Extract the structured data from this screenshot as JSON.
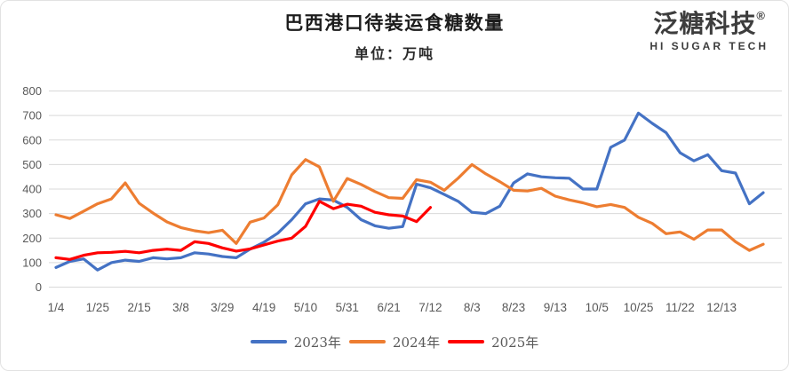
{
  "header": {
    "title": "巴西港口待装运食糖数量",
    "subtitle": "单位：万吨"
  },
  "logo": {
    "brand": "泛糖科技",
    "registered": "®",
    "tagline": "HI SUGAR TECH"
  },
  "colors": {
    "gridline": "#d9d9d9",
    "axis_text": "#595959",
    "series_2023": "#4472c4",
    "series_2024": "#ed7d31",
    "series_2025": "#ff0000"
  },
  "chart_data": {
    "type": "line",
    "title": "巴西港口待装运食糖数量",
    "unit_label": "单位：万吨",
    "grid": true,
    "legend_position": "bottom",
    "ylim": [
      0,
      800
    ],
    "y_ticks": [
      0,
      100,
      200,
      300,
      400,
      500,
      600,
      700,
      800
    ],
    "x_tick_labels": [
      "1/4",
      "1/25",
      "2/15",
      "3/8",
      "3/29",
      "4/19",
      "5/10",
      "5/31",
      "6/21",
      "7/12",
      "8/3",
      "8/23",
      "9/13",
      "10/5",
      "10/25",
      "11/22",
      "12/13"
    ],
    "ticks_every": 3,
    "n_points": 52,
    "x_note": "weekly data points; axis labeled every 3rd point",
    "series": [
      {
        "name": "2023年",
        "color": "#4472c4",
        "values": [
          80,
          105,
          115,
          70,
          100,
          110,
          105,
          120,
          115,
          120,
          140,
          135,
          125,
          120,
          155,
          183,
          220,
          275,
          340,
          360,
          355,
          325,
          275,
          250,
          240,
          247,
          420,
          405,
          378,
          350,
          305,
          300,
          330,
          425,
          462,
          450,
          446,
          444,
          400,
          400,
          570,
          600,
          710,
          668,
          630,
          548,
          515,
          540,
          475,
          465,
          340,
          385
        ]
      },
      {
        "name": "2024年",
        "color": "#ed7d31",
        "values": [
          295,
          280,
          310,
          340,
          360,
          425,
          342,
          302,
          266,
          243,
          230,
          222,
          232,
          178,
          265,
          282,
          336,
          458,
          520,
          490,
          350,
          443,
          419,
          390,
          365,
          362,
          438,
          428,
          395,
          444,
          500,
          462,
          430,
          395,
          392,
          403,
          371,
          356,
          344,
          328,
          337,
          325,
          285,
          260,
          218,
          225,
          195,
          233,
          233,
          185,
          150,
          175
        ]
      },
      {
        "name": "2025年",
        "color": "#ff0000",
        "values": [
          120,
          113,
          130,
          140,
          142,
          146,
          140,
          150,
          155,
          150,
          185,
          178,
          160,
          147,
          156,
          172,
          188,
          200,
          248,
          350,
          320,
          338,
          330,
          305,
          295,
          290,
          267,
          325
        ]
      }
    ]
  }
}
